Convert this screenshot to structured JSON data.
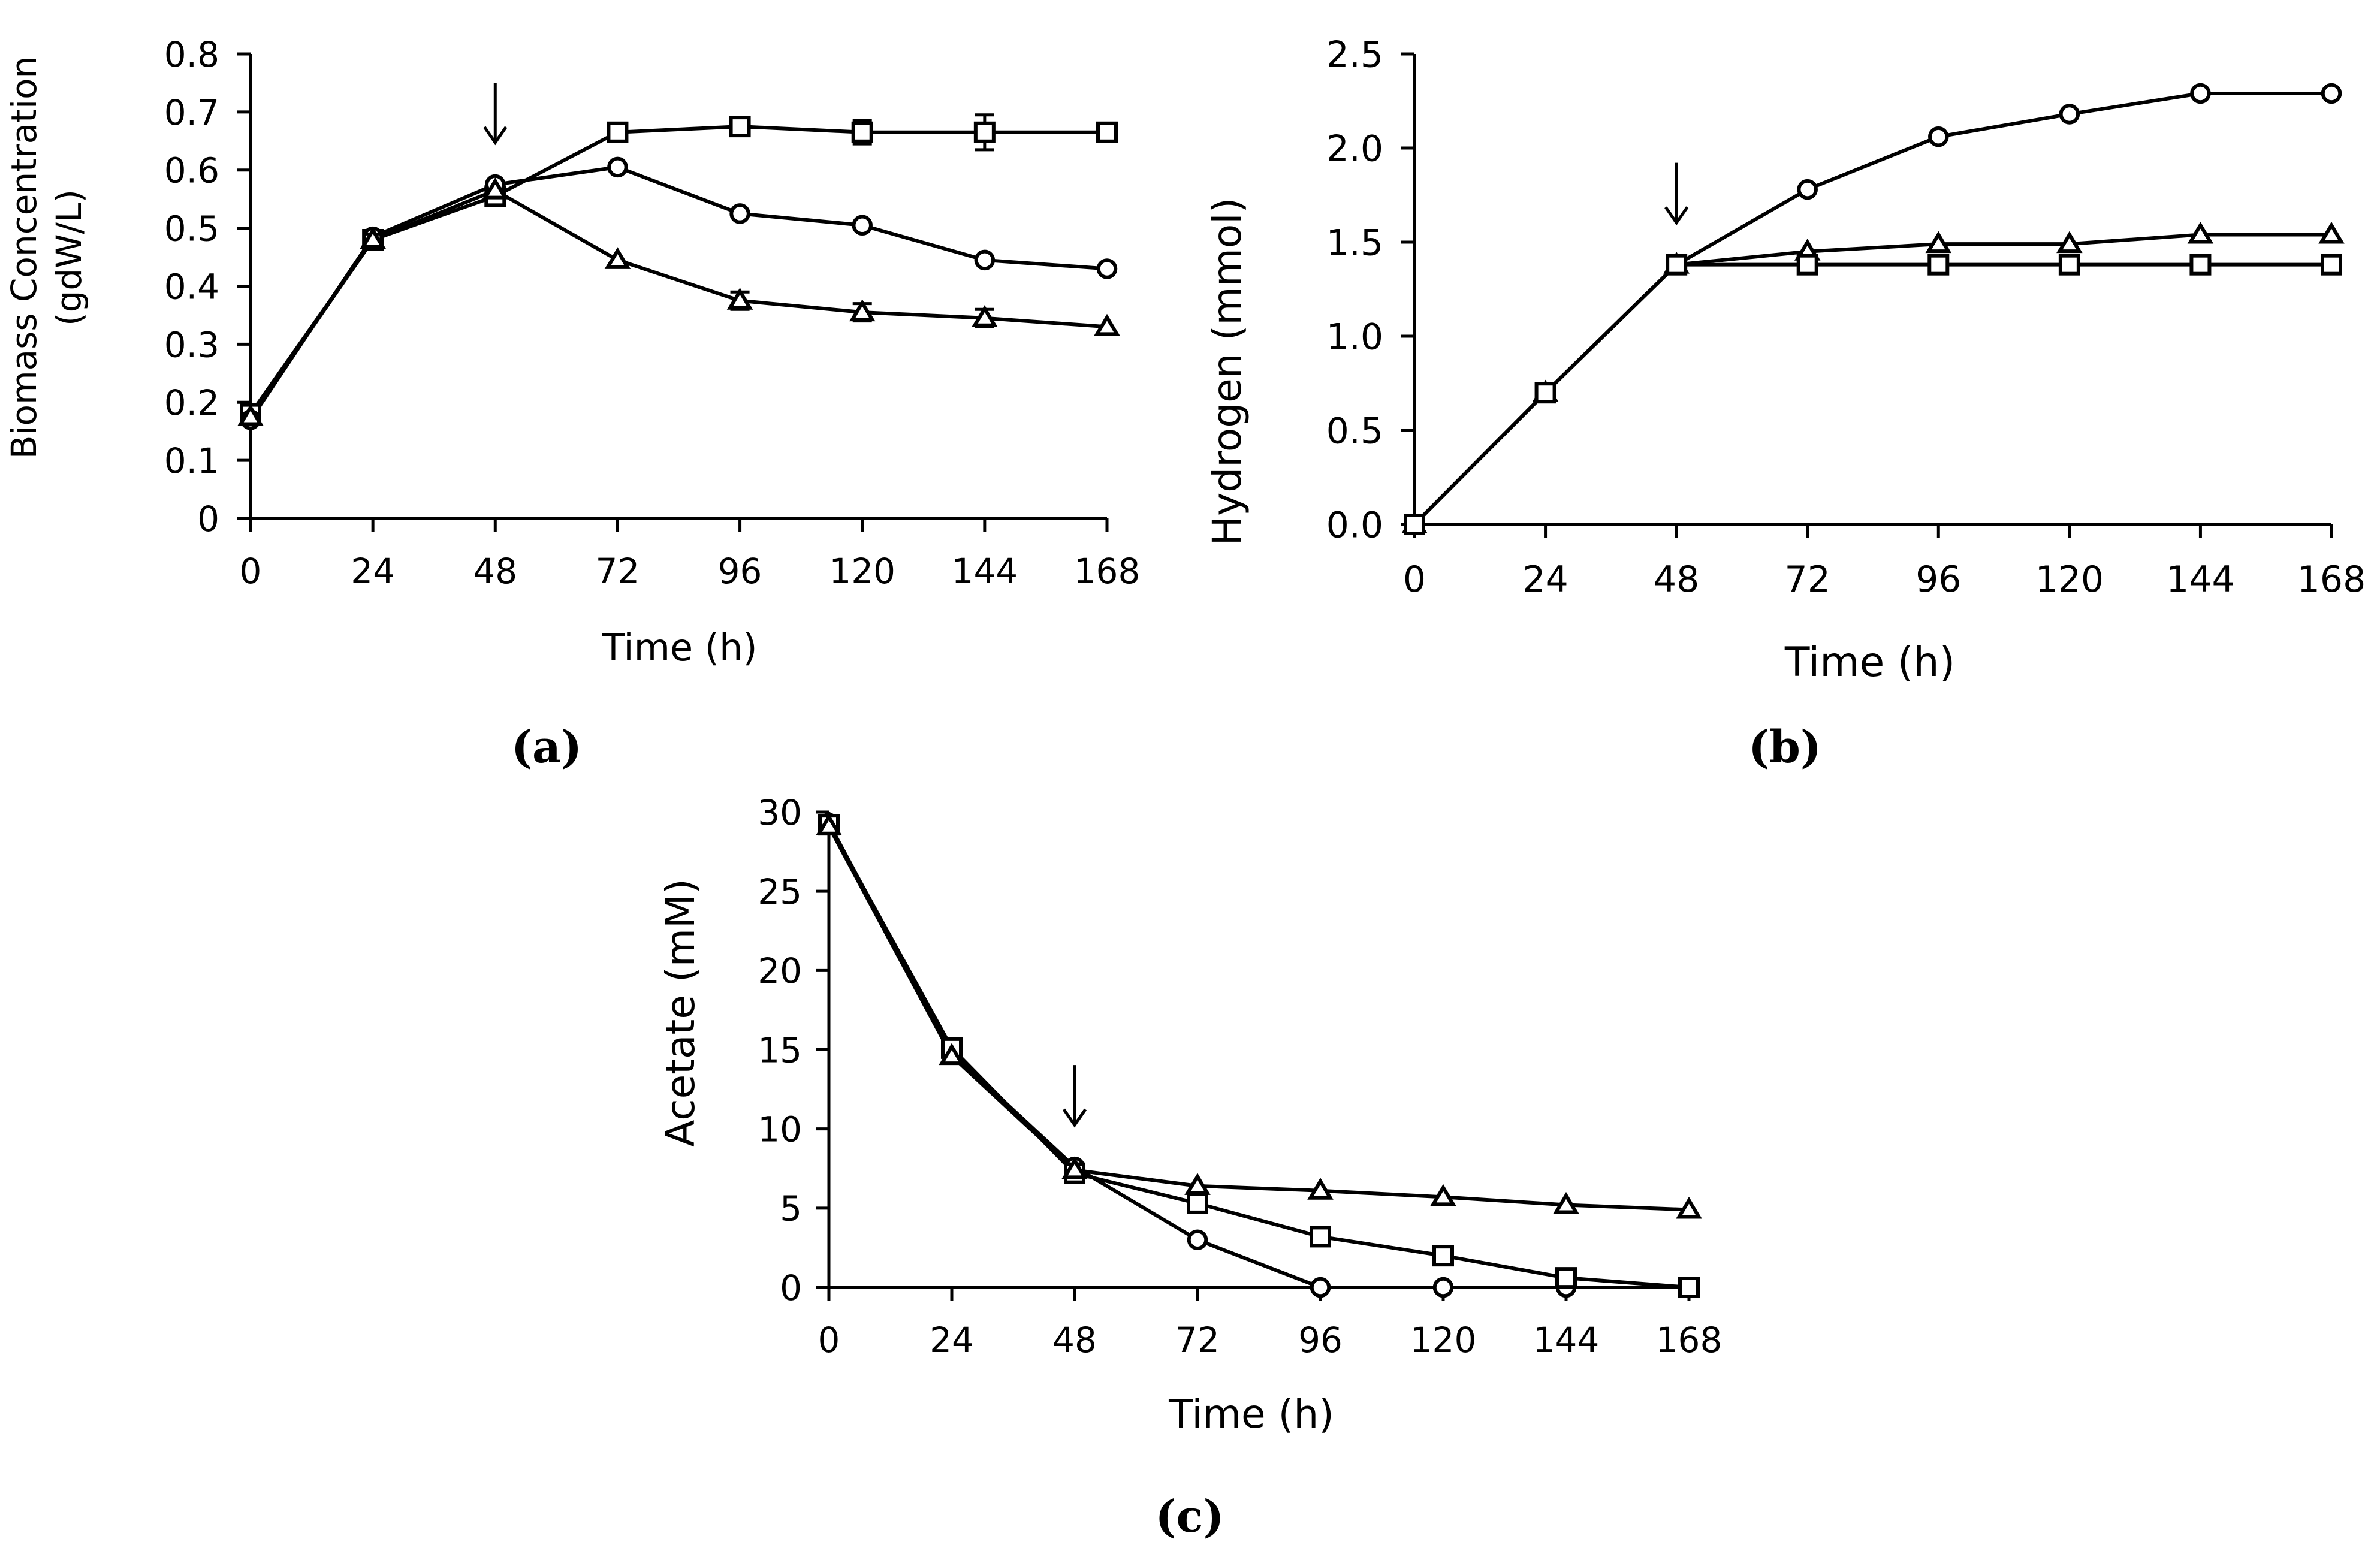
{
  "chart_data": [
    {
      "id": "a",
      "type": "line",
      "panel_label": "(a)",
      "xlabel": "Time (h)",
      "ylabel": [
        "Biomass Concentration",
        "(gdW/L)"
      ],
      "x": [
        0,
        24,
        48,
        72,
        96,
        120,
        144,
        168
      ],
      "xlim": [
        0,
        168
      ],
      "ylim": [
        0,
        0.8
      ],
      "yticks": [
        "0",
        "0.1",
        "0.2",
        "0.3",
        "0.4",
        "0.5",
        "0.6",
        "0.7",
        "0.8"
      ],
      "xticks": [
        "0",
        "24",
        "48",
        "72",
        "96",
        "120",
        "144",
        "168"
      ],
      "annotations": [
        {
          "type": "arrow",
          "x": 48,
          "symbol": "↓"
        }
      ],
      "series": [
        {
          "name": "square",
          "marker": "square",
          "values": [
            0.18,
            0.48,
            0.555,
            0.665,
            0.675,
            0.665,
            0.665,
            0.665
          ],
          "errors": [
            0.01,
            0.01,
            0.01,
            0.015,
            0.01,
            0.02,
            0.03,
            0.01
          ]
        },
        {
          "name": "circle",
          "marker": "circle",
          "values": [
            0.17,
            0.485,
            0.575,
            0.605,
            0.525,
            0.505,
            0.445,
            0.43
          ],
          "errors": [
            0.005,
            0.005,
            0.005,
            0.005,
            0.005,
            0.005,
            0.005,
            0.005
          ]
        },
        {
          "name": "triangle",
          "marker": "triangle",
          "values": [
            0.175,
            0.48,
            0.565,
            0.445,
            0.375,
            0.355,
            0.345,
            0.33
          ],
          "errors": [
            0.005,
            0.01,
            0.005,
            0.005,
            0.015,
            0.015,
            0.015,
            0.005
          ]
        }
      ]
    },
    {
      "id": "b",
      "type": "line",
      "panel_label": "(b)",
      "xlabel": "Time (h)",
      "ylabel": [
        "Hydrogen (mmol)"
      ],
      "x": [
        0,
        24,
        48,
        72,
        96,
        120,
        144,
        168
      ],
      "xlim": [
        0,
        168
      ],
      "ylim": [
        0,
        2.5
      ],
      "yticks": [
        "0.0",
        "0.5",
        "1.0",
        "1.5",
        "2.0",
        "2.5"
      ],
      "xticks": [
        "0",
        "24",
        "48",
        "72",
        "96",
        "120",
        "144",
        "168"
      ],
      "annotations": [
        {
          "type": "arrow",
          "x": 48,
          "symbol": "↓"
        }
      ],
      "series": [
        {
          "name": "circle",
          "marker": "circle",
          "values": [
            0,
            0.7,
            1.38,
            1.78,
            2.06,
            2.18,
            2.29,
            2.29
          ],
          "errors": [
            0,
            0,
            0,
            0,
            0,
            0,
            0,
            0
          ]
        },
        {
          "name": "triangle",
          "marker": "triangle",
          "values": [
            0,
            0.7,
            1.38,
            1.45,
            1.49,
            1.49,
            1.54,
            1.54
          ],
          "errors": [
            0,
            0,
            0,
            0,
            0,
            0,
            0,
            0
          ]
        },
        {
          "name": "square",
          "marker": "square",
          "values": [
            0,
            0.7,
            1.38,
            1.38,
            1.38,
            1.38,
            1.38,
            1.38
          ],
          "errors": [
            0,
            0,
            0,
            0,
            0,
            0,
            0,
            0
          ]
        }
      ]
    },
    {
      "id": "c",
      "type": "line",
      "panel_label": "(c)",
      "xlabel": "Time (h)",
      "ylabel": [
        "Acetate (mM)"
      ],
      "x": [
        0,
        24,
        48,
        72,
        96,
        120,
        144,
        168
      ],
      "xlim": [
        0,
        168
      ],
      "ylim": [
        0,
        30
      ],
      "yticks": [
        "0",
        "5",
        "10",
        "15",
        "20",
        "25",
        "30"
      ],
      "xticks": [
        "0",
        "24",
        "48",
        "72",
        "96",
        "120",
        "144",
        "168"
      ],
      "annotations": [
        {
          "type": "arrow",
          "x": 48,
          "symbol": "↓"
        }
      ],
      "series": [
        {
          "name": "circle",
          "marker": "circle",
          "values": [
            29.3,
            14.8,
            7.6,
            3.0,
            0,
            0,
            0,
            0
          ],
          "errors": [
            0,
            0,
            0,
            0,
            0,
            0,
            0,
            0
          ]
        },
        {
          "name": "square",
          "marker": "square",
          "values": [
            29.2,
            15.1,
            7.2,
            5.3,
            3.2,
            2.0,
            0.6,
            0
          ],
          "errors": [
            0.2,
            0.2,
            0.2,
            0.2,
            0.1,
            0.1,
            0.1,
            0
          ]
        },
        {
          "name": "triangle",
          "marker": "triangle",
          "values": [
            29.1,
            14.6,
            7.4,
            6.4,
            6.1,
            5.7,
            5.2,
            4.9
          ],
          "errors": [
            0,
            0,
            0,
            0,
            0,
            0,
            0,
            0
          ]
        }
      ]
    }
  ]
}
